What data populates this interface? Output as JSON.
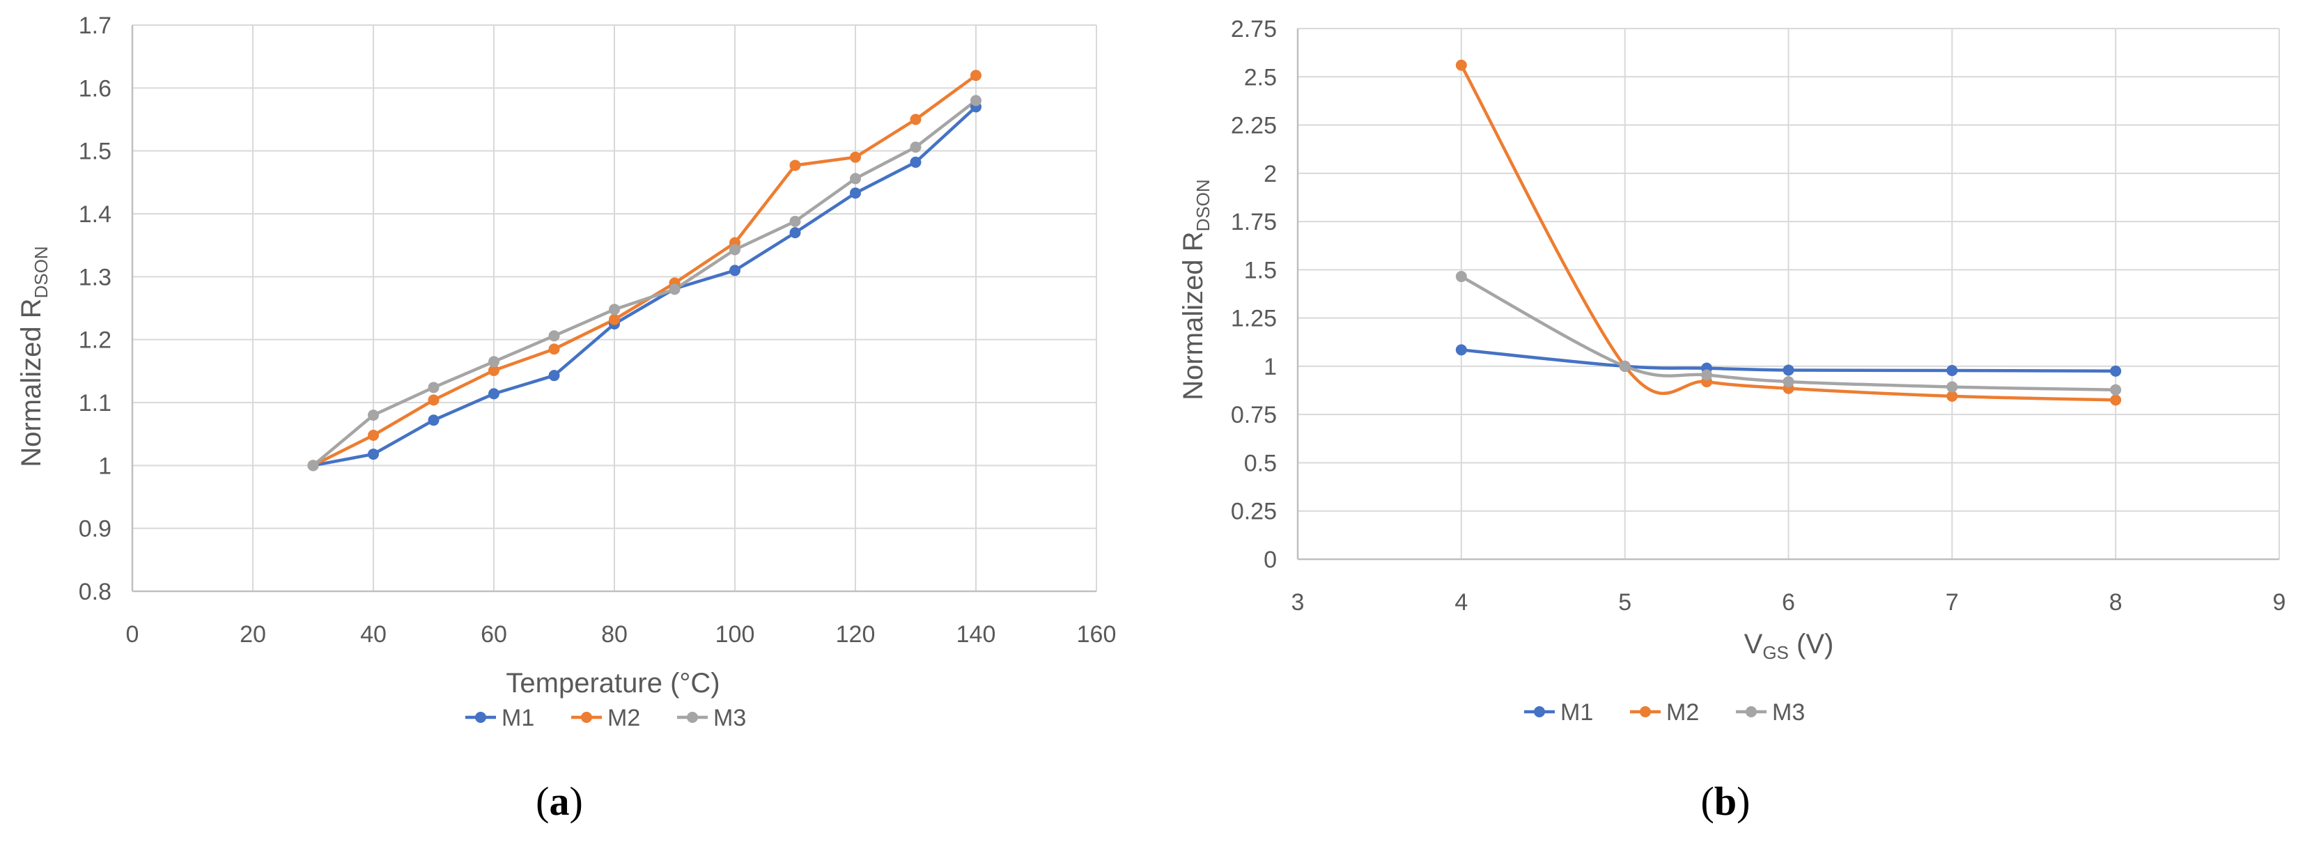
{
  "chart_data": [
    {
      "id": "a",
      "type": "line",
      "caption": {
        "prefix": "(",
        "letter": "a",
        "suffix": ")"
      },
      "xlabel": "Temperature (°C)",
      "ylabel": {
        "main": "Normalized R",
        "sub": "DSON"
      },
      "xlim": [
        0,
        160
      ],
      "ylim": [
        0.8,
        1.7
      ],
      "xticks": [
        0,
        20,
        40,
        60,
        80,
        100,
        120,
        140,
        160
      ],
      "xtick_labels": [
        "0",
        "20",
        "40",
        "60",
        "80",
        "100",
        "120",
        "140",
        "160"
      ],
      "yticks": [
        0.8,
        0.9,
        1.0,
        1.1,
        1.2,
        1.3,
        1.4,
        1.5,
        1.6,
        1.7
      ],
      "ytick_labels": [
        "0.8",
        "0.9",
        "1",
        "1.1",
        "1.2",
        "1.3",
        "1.4",
        "1.5",
        "1.6",
        "1.7"
      ],
      "grid": true,
      "smooth": false,
      "legend_position": "bottom",
      "series": [
        {
          "name": "M1",
          "color": "#4472C4",
          "points": [
            [
              30,
              1.0
            ],
            [
              40,
              1.018
            ],
            [
              50,
              1.072
            ],
            [
              60,
              1.114
            ],
            [
              70,
              1.143
            ],
            [
              80,
              1.225
            ],
            [
              90,
              1.281
            ],
            [
              100,
              1.31
            ],
            [
              110,
              1.37
            ],
            [
              120,
              1.433
            ],
            [
              130,
              1.482
            ],
            [
              140,
              1.57
            ]
          ]
        },
        {
          "name": "M2",
          "color": "#ED7D31",
          "points": [
            [
              30,
              1.0
            ],
            [
              40,
              1.048
            ],
            [
              50,
              1.104
            ],
            [
              60,
              1.151
            ],
            [
              70,
              1.185
            ],
            [
              80,
              1.232
            ],
            [
              90,
              1.29
            ],
            [
              100,
              1.354
            ],
            [
              110,
              1.477
            ],
            [
              120,
              1.49
            ],
            [
              130,
              1.55
            ],
            [
              140,
              1.62
            ]
          ]
        },
        {
          "name": "M3",
          "color": "#A5A5A5",
          "points": [
            [
              30,
              1.0
            ],
            [
              40,
              1.08
            ],
            [
              50,
              1.124
            ],
            [
              60,
              1.165
            ],
            [
              70,
              1.206
            ],
            [
              80,
              1.248
            ],
            [
              90,
              1.28
            ],
            [
              100,
              1.343
            ],
            [
              110,
              1.388
            ],
            [
              120,
              1.456
            ],
            [
              130,
              1.506
            ],
            [
              140,
              1.58
            ]
          ]
        }
      ]
    },
    {
      "id": "b",
      "type": "line",
      "caption": {
        "prefix": "(",
        "letter": "b",
        "suffix": ")"
      },
      "xlabel": {
        "main": "V",
        "sub": "GS",
        "suffix": " (V)"
      },
      "ylabel": {
        "main": "Normalized R",
        "sub": "DSON"
      },
      "xlim": [
        3,
        9
      ],
      "ylim": [
        0,
        2.75
      ],
      "xticks": [
        3,
        4,
        5,
        6,
        7,
        8,
        9
      ],
      "xtick_labels": [
        "3",
        "4",
        "5",
        "6",
        "7",
        "8",
        "9"
      ],
      "yticks": [
        0,
        0.25,
        0.5,
        0.75,
        1.0,
        1.25,
        1.5,
        1.75,
        2.0,
        2.25,
        2.5,
        2.75
      ],
      "ytick_labels": [
        "0",
        "0.25",
        "0.5",
        "0.75",
        "1",
        "1.25",
        "1.5",
        "1.75",
        "2",
        "2.25",
        "2.5",
        "2.75"
      ],
      "grid": true,
      "smooth": true,
      "legend_position": "bottom",
      "series": [
        {
          "name": "M1",
          "color": "#4472C4",
          "points": [
            [
              4,
              1.085
            ],
            [
              5,
              1.0
            ],
            [
              5.5,
              0.99
            ],
            [
              6,
              0.98
            ],
            [
              7,
              0.978
            ],
            [
              8,
              0.975
            ]
          ]
        },
        {
          "name": "M2",
          "color": "#ED7D31",
          "points": [
            [
              4,
              2.56
            ],
            [
              5,
              1.0
            ],
            [
              5.5,
              0.92
            ],
            [
              6,
              0.885
            ],
            [
              7,
              0.845
            ],
            [
              8,
              0.825
            ]
          ]
        },
        {
          "name": "M3",
          "color": "#A5A5A5",
          "points": [
            [
              4,
              1.465
            ],
            [
              5,
              1.0
            ],
            [
              5.5,
              0.955
            ],
            [
              6,
              0.92
            ],
            [
              7,
              0.893
            ],
            [
              8,
              0.878
            ]
          ]
        }
      ]
    }
  ]
}
